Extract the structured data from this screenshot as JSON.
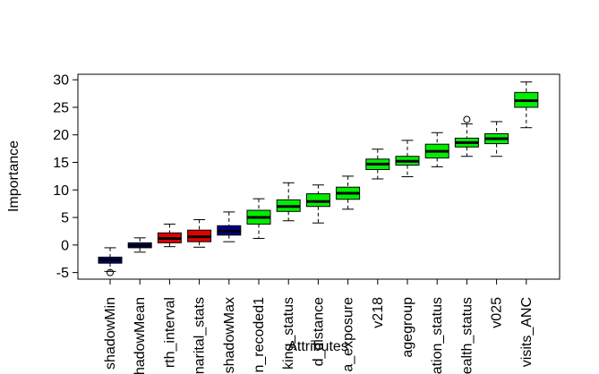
{
  "chart_data": {
    "type": "boxplot",
    "title": "",
    "xlabel": "Attributes",
    "ylabel": "Importance",
    "ylim": [
      -6.2,
      31.0
    ],
    "yticks": [
      -5,
      0,
      5,
      10,
      15,
      20,
      25,
      30
    ],
    "ytick_labels": [
      "-5",
      "0",
      "5",
      "10",
      "15",
      "20",
      "25",
      "30"
    ],
    "grid": false,
    "legend": "none",
    "colors": {
      "shadow": "#00008B",
      "rejected": "#E00000",
      "confirmed": "#00EE00"
    },
    "categories": [
      "shadowMin",
      "shadowMean",
      "rth_interval",
      "narital_stats",
      "shadowMax",
      "n_recoded1",
      "king_status",
      "d_distance",
      "a_exposure",
      "v218",
      "agegroup",
      "ation_status",
      "ealth_status",
      "v025",
      "visits_ANC"
    ],
    "series": [
      {
        "label": "shadowMin",
        "group": "shadow",
        "whisker_low": -4.8,
        "q1": -3.3,
        "median": -2.7,
        "q3": -2.2,
        "whisker_high": -0.5,
        "outliers": [
          -5.0
        ]
      },
      {
        "label": "shadowMean",
        "group": "shadow",
        "whisker_low": -1.3,
        "q1": -0.5,
        "median": -0.1,
        "q3": 0.4,
        "whisker_high": 1.3,
        "outliers": []
      },
      {
        "label": "rth_interval",
        "group": "rejected",
        "whisker_low": -0.3,
        "q1": 0.4,
        "median": 1.2,
        "q3": 2.2,
        "whisker_high": 3.8,
        "outliers": []
      },
      {
        "label": "narital_stats",
        "group": "rejected",
        "whisker_low": -0.4,
        "q1": 0.6,
        "median": 1.5,
        "q3": 2.7,
        "whisker_high": 4.6,
        "outliers": []
      },
      {
        "label": "shadowMax",
        "group": "shadow",
        "whisker_low": 0.6,
        "q1": 1.8,
        "median": 2.5,
        "q3": 3.5,
        "whisker_high": 6.0,
        "outliers": []
      },
      {
        "label": "n_recoded1",
        "group": "confirmed",
        "whisker_low": 1.2,
        "q1": 3.8,
        "median": 5.0,
        "q3": 6.3,
        "whisker_high": 8.4,
        "outliers": []
      },
      {
        "label": "king_status",
        "group": "confirmed",
        "whisker_low": 4.4,
        "q1": 6.1,
        "median": 7.0,
        "q3": 8.2,
        "whisker_high": 11.3,
        "outliers": []
      },
      {
        "label": "d_distance",
        "group": "confirmed",
        "whisker_low": 4.0,
        "q1": 7.0,
        "median": 7.9,
        "q3": 9.3,
        "whisker_high": 10.9,
        "outliers": []
      },
      {
        "label": "a_exposure",
        "group": "confirmed",
        "whisker_low": 6.5,
        "q1": 8.3,
        "median": 9.4,
        "q3": 10.5,
        "whisker_high": 12.5,
        "outliers": []
      },
      {
        "label": "v218",
        "group": "confirmed",
        "whisker_low": 12.0,
        "q1": 13.7,
        "median": 14.7,
        "q3": 15.6,
        "whisker_high": 17.4,
        "outliers": []
      },
      {
        "label": "agegroup",
        "group": "confirmed",
        "whisker_low": 12.4,
        "q1": 14.5,
        "median": 15.2,
        "q3": 16.1,
        "whisker_high": 19.0,
        "outliers": []
      },
      {
        "label": "ation_status",
        "group": "confirmed",
        "whisker_low": 14.2,
        "q1": 15.8,
        "median": 17.0,
        "q3": 18.3,
        "whisker_high": 20.4,
        "outliers": []
      },
      {
        "label": "ealth_status",
        "group": "confirmed",
        "whisker_low": 16.1,
        "q1": 17.8,
        "median": 18.6,
        "q3": 19.4,
        "whisker_high": 22.0,
        "outliers": [
          22.8
        ]
      },
      {
        "label": "v025",
        "group": "confirmed",
        "whisker_low": 16.1,
        "q1": 18.4,
        "median": 19.3,
        "q3": 20.2,
        "whisker_high": 22.4,
        "outliers": []
      },
      {
        "label": "visits_ANC",
        "group": "confirmed",
        "whisker_low": 21.3,
        "q1": 25.0,
        "median": 26.2,
        "q3": 27.7,
        "whisker_high": 29.6,
        "outliers": []
      }
    ]
  }
}
